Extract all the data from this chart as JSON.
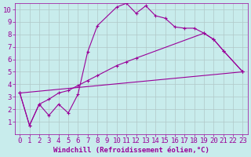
{
  "xlabel": "Windchill (Refroidissement éolien,°C)",
  "bg_color": "#c8ecec",
  "line_color": "#990099",
  "grid_color": "#b0c8c8",
  "xlim": [
    -0.5,
    23.5
  ],
  "ylim": [
    0,
    10.5
  ],
  "xticks": [
    0,
    1,
    2,
    3,
    4,
    5,
    6,
    7,
    8,
    9,
    10,
    11,
    12,
    13,
    14,
    15,
    16,
    17,
    18,
    19,
    20,
    21,
    22,
    23
  ],
  "yticks": [
    1,
    2,
    3,
    4,
    5,
    6,
    7,
    8,
    9,
    10
  ],
  "font_size": 6.5,
  "curve1_x": [
    0,
    1,
    2,
    3,
    4,
    5,
    6,
    7,
    8,
    10,
    11,
    12,
    13,
    14,
    15,
    16,
    17,
    18,
    19,
    20,
    21,
    23
  ],
  "curve1_y": [
    3.3,
    0.7,
    2.4,
    1.5,
    2.4,
    1.7,
    3.2,
    6.6,
    8.7,
    10.2,
    10.5,
    9.7,
    10.3,
    9.5,
    9.3,
    8.6,
    8.5,
    8.5,
    8.1,
    7.6,
    6.7,
    5.0
  ],
  "curve2_x": [
    0,
    1,
    2,
    3,
    4,
    5,
    6,
    7,
    8,
    10,
    11,
    12,
    19,
    20,
    21,
    23
  ],
  "curve2_y": [
    3.3,
    0.7,
    2.4,
    2.8,
    3.3,
    3.5,
    3.9,
    4.3,
    4.7,
    5.5,
    5.8,
    6.1,
    8.1,
    7.6,
    6.7,
    5.0
  ],
  "curve3_x": [
    0,
    23
  ],
  "curve3_y": [
    3.3,
    5.0
  ]
}
